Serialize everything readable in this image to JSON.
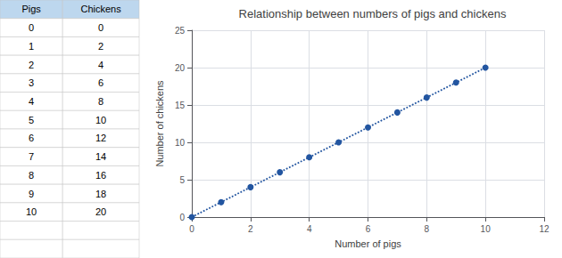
{
  "chart_data": {
    "type": "line",
    "title": "Relationship between numbers of pigs and chickens",
    "xlabel": "Number of pigs",
    "ylabel": "Number of chickens",
    "x": [
      0,
      1,
      2,
      3,
      4,
      5,
      6,
      7,
      8,
      9,
      10
    ],
    "values": [
      0,
      2,
      4,
      6,
      8,
      10,
      12,
      14,
      16,
      18,
      20
    ],
    "color": "#2255A0",
    "marker": "circle",
    "line_style": "dotted",
    "xlim": [
      0,
      12
    ],
    "xticks": [
      0,
      2,
      4,
      6,
      8,
      10,
      12
    ],
    "ylim": [
      0,
      25
    ],
    "yticks": [
      0,
      5,
      10,
      15,
      20,
      25
    ],
    "grid": true,
    "annotations": [
      "Pigs",
      "Chickens"
    ]
  }
}
